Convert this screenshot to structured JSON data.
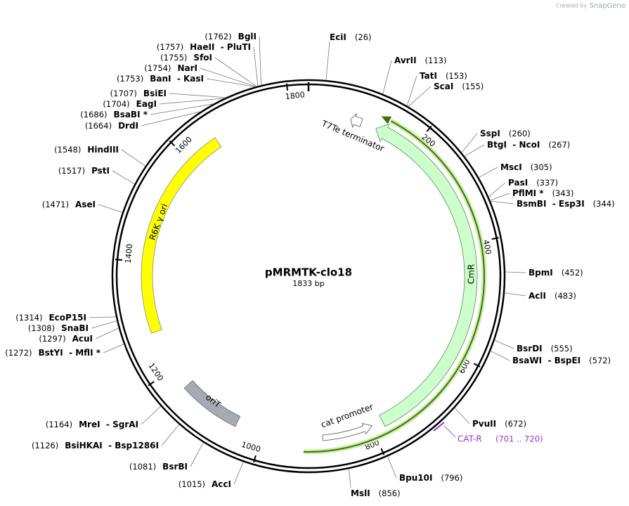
{
  "watermark": {
    "prefix": "Created by",
    "brand": "SnapGene"
  },
  "map": {
    "name": "pMRMTK-clo18",
    "length": "1833 bp",
    "ticks": [
      200,
      400,
      600,
      800,
      1000,
      1200,
      1400,
      1600,
      1800
    ],
    "features": [
      {
        "label": "R6K γ ori"
      },
      {
        "label": "oriT"
      },
      {
        "label": "CmR"
      },
      {
        "label": "cat promoter"
      },
      {
        "label": "T7Te terminator"
      }
    ],
    "primer": {
      "label": "CAT-R",
      "range": "(701 .. 720)"
    }
  },
  "enzymes_right": [
    {
      "name": "EciI",
      "position": "(26)"
    },
    {
      "name": "AvrII",
      "position": "(113)"
    },
    {
      "name": "TatI",
      "position": "(153)"
    },
    {
      "name": "ScaI",
      "position": "(155)"
    },
    {
      "name": "SspI",
      "position": "(260)"
    },
    {
      "name": "BtgI  - NcoI",
      "position": "(267)"
    },
    {
      "name": "MscI",
      "position": "(305)"
    },
    {
      "name": "PasI",
      "position": "(337)"
    },
    {
      "name": "PflMI *",
      "position": "(343)"
    },
    {
      "name": "BsmBI  - Esp3I",
      "position": "(344)"
    },
    {
      "name": "BpmI",
      "position": "(452)"
    },
    {
      "name": "AclI",
      "position": "(483)"
    },
    {
      "name": "BsrDI",
      "position": "(555)"
    },
    {
      "name": "BsaWI  - BspEI",
      "position": "(572)"
    },
    {
      "name": "PvuII",
      "position": "(672)"
    },
    {
      "name": "Bpu10I",
      "position": "(796)"
    },
    {
      "name": "MslI",
      "position": "(856)"
    }
  ],
  "enzymes_left": [
    {
      "name": "BglI",
      "position": "(1762)"
    },
    {
      "name": "HaeII  - PluTI",
      "position": "(1757)"
    },
    {
      "name": "SfoI",
      "position": "(1755)"
    },
    {
      "name": "NarI",
      "position": "(1754)"
    },
    {
      "name": "BanI  - KasI",
      "position": "(1753)"
    },
    {
      "name": "BsiEI",
      "position": "(1707)"
    },
    {
      "name": "EagI",
      "position": "(1704)"
    },
    {
      "name": "BsaBI *",
      "position": "(1686)"
    },
    {
      "name": "DrdI",
      "position": "(1664)"
    },
    {
      "name": "HindIII",
      "position": "(1548)"
    },
    {
      "name": "PstI",
      "position": "(1517)"
    },
    {
      "name": "AseI",
      "position": "(1471)"
    },
    {
      "name": "EcoP15I",
      "position": "(1314)"
    },
    {
      "name": "SnaBI",
      "position": "(1308)"
    },
    {
      "name": "AcuI",
      "position": "(1297)"
    },
    {
      "name": "BstYI  - MflI *",
      "position": "(1272)"
    },
    {
      "name": "MreI  - SgrAI",
      "position": "(1164)"
    },
    {
      "name": "BsiHKAI  - Bsp1286I",
      "position": "(1126)"
    },
    {
      "name": "BsrBI",
      "position": "(1081)"
    },
    {
      "name": "AccI",
      "position": "(1015)"
    }
  ]
}
